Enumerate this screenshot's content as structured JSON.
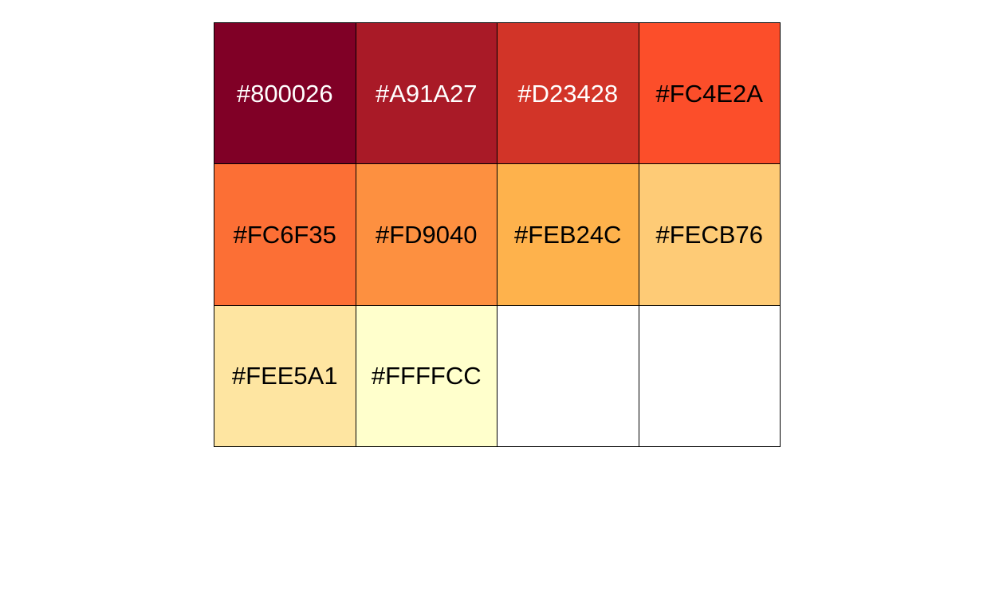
{
  "palette": {
    "swatches": [
      {
        "label": "#800026",
        "color": "#800026",
        "text_color": "#FFFFFF"
      },
      {
        "label": "#A91A27",
        "color": "#A91A27",
        "text_color": "#FFFFFF"
      },
      {
        "label": "#D23428",
        "color": "#D23428",
        "text_color": "#FFFFFF"
      },
      {
        "label": "#FC4E2A",
        "color": "#FC4E2A",
        "text_color": "#000000"
      },
      {
        "label": "#FC6F35",
        "color": "#FC6F35",
        "text_color": "#000000"
      },
      {
        "label": "#FD9040",
        "color": "#FD9040",
        "text_color": "#000000"
      },
      {
        "label": "#FEB24C",
        "color": "#FEB24C",
        "text_color": "#000000"
      },
      {
        "label": "#FECB76",
        "color": "#FECB76",
        "text_color": "#000000"
      },
      {
        "label": "#FEE5A1",
        "color": "#FEE5A1",
        "text_color": "#000000"
      },
      {
        "label": "#FFFFCC",
        "color": "#FFFFCC",
        "text_color": "#000000"
      },
      {
        "label": "",
        "color": "#FFFFFF",
        "text_color": "#000000"
      },
      {
        "label": "",
        "color": "#FFFFFF",
        "text_color": "#000000"
      }
    ]
  }
}
